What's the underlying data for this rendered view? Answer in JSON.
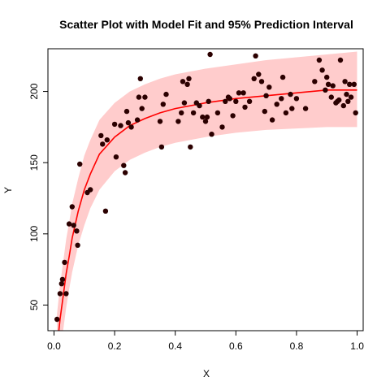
{
  "chart_data": {
    "type": "scatter",
    "title": "Scatter Plot with Model Fit and 95% Prediction Interval",
    "xlabel": "X",
    "ylabel": "Y",
    "xlim": [
      -0.02,
      1.02
    ],
    "ylim": [
      32,
      230
    ],
    "x_ticks": [
      0.0,
      0.2,
      0.4,
      0.6,
      0.8,
      1.0
    ],
    "x_tick_labels": [
      "0.0",
      "0.2",
      "0.4",
      "0.6",
      "0.8",
      "1.0"
    ],
    "y_ticks": [
      50,
      100,
      150,
      200
    ],
    "y_tick_labels": [
      "50",
      "100",
      "150",
      "200"
    ],
    "grid": false,
    "colors": {
      "points": "#2b0000",
      "fit_line": "#ff0000",
      "band": "#ffcccc",
      "axes": "#000000"
    },
    "points": [
      [
        0.01,
        40
      ],
      [
        0.02,
        58
      ],
      [
        0.025,
        65
      ],
      [
        0.028,
        68
      ],
      [
        0.035,
        80
      ],
      [
        0.04,
        58
      ],
      [
        0.05,
        107
      ],
      [
        0.06,
        119
      ],
      [
        0.065,
        106
      ],
      [
        0.075,
        102
      ],
      [
        0.078,
        92
      ],
      [
        0.085,
        149
      ],
      [
        0.11,
        129
      ],
      [
        0.12,
        131
      ],
      [
        0.155,
        169
      ],
      [
        0.16,
        163
      ],
      [
        0.17,
        116
      ],
      [
        0.175,
        166
      ],
      [
        0.2,
        177
      ],
      [
        0.205,
        154
      ],
      [
        0.22,
        176
      ],
      [
        0.23,
        148
      ],
      [
        0.235,
        143
      ],
      [
        0.24,
        186
      ],
      [
        0.245,
        178
      ],
      [
        0.255,
        175
      ],
      [
        0.275,
        180
      ],
      [
        0.28,
        196
      ],
      [
        0.285,
        209
      ],
      [
        0.29,
        188
      ],
      [
        0.3,
        196
      ],
      [
        0.35,
        179
      ],
      [
        0.355,
        161
      ],
      [
        0.36,
        191
      ],
      [
        0.37,
        198
      ],
      [
        0.41,
        179
      ],
      [
        0.42,
        185
      ],
      [
        0.425,
        207
      ],
      [
        0.43,
        192
      ],
      [
        0.44,
        205
      ],
      [
        0.445,
        209
      ],
      [
        0.45,
        161
      ],
      [
        0.46,
        185
      ],
      [
        0.47,
        192
      ],
      [
        0.48,
        190
      ],
      [
        0.49,
        182
      ],
      [
        0.5,
        179
      ],
      [
        0.505,
        182
      ],
      [
        0.51,
        193
      ],
      [
        0.515,
        226
      ],
      [
        0.52,
        170
      ],
      [
        0.54,
        185
      ],
      [
        0.555,
        175
      ],
      [
        0.565,
        193
      ],
      [
        0.575,
        196
      ],
      [
        0.58,
        195
      ],
      [
        0.59,
        183
      ],
      [
        0.6,
        193
      ],
      [
        0.61,
        199
      ],
      [
        0.625,
        199
      ],
      [
        0.63,
        189
      ],
      [
        0.645,
        193
      ],
      [
        0.66,
        209
      ],
      [
        0.665,
        225
      ],
      [
        0.675,
        212
      ],
      [
        0.685,
        207
      ],
      [
        0.695,
        186
      ],
      [
        0.7,
        197
      ],
      [
        0.71,
        203
      ],
      [
        0.72,
        180
      ],
      [
        0.735,
        191
      ],
      [
        0.75,
        195
      ],
      [
        0.755,
        210
      ],
      [
        0.765,
        185
      ],
      [
        0.78,
        198
      ],
      [
        0.785,
        188
      ],
      [
        0.8,
        195
      ],
      [
        0.83,
        188
      ],
      [
        0.86,
        207
      ],
      [
        0.875,
        222
      ],
      [
        0.885,
        215
      ],
      [
        0.895,
        201
      ],
      [
        0.9,
        210
      ],
      [
        0.905,
        205
      ],
      [
        0.915,
        196
      ],
      [
        0.92,
        204
      ],
      [
        0.93,
        192
      ],
      [
        0.935,
        193
      ],
      [
        0.94,
        194
      ],
      [
        0.945,
        222
      ],
      [
        0.955,
        190
      ],
      [
        0.96,
        207
      ],
      [
        0.965,
        198
      ],
      [
        0.97,
        193
      ],
      [
        0.975,
        205
      ],
      [
        0.98,
        196
      ],
      [
        0.99,
        205
      ],
      [
        0.995,
        185
      ]
    ],
    "fit": {
      "x": [
        0.01,
        0.02,
        0.03,
        0.04,
        0.05,
        0.06,
        0.08,
        0.1,
        0.12,
        0.15,
        0.2,
        0.25,
        0.3,
        0.35,
        0.4,
        0.5,
        0.6,
        0.7,
        0.8,
        0.9,
        1.0
      ],
      "y": [
        20,
        40,
        56,
        72,
        84,
        97,
        116,
        131,
        142,
        156,
        168,
        176,
        181,
        185,
        188,
        192,
        195,
        197,
        199,
        201,
        201
      ],
      "lower": [
        -4,
        16,
        32,
        48,
        61,
        73,
        92,
        106,
        118,
        131,
        144,
        152,
        157,
        161,
        164,
        168,
        171,
        173,
        174,
        175,
        175
      ],
      "upper": [
        44,
        64,
        80,
        96,
        108,
        121,
        139,
        155,
        166,
        180,
        192,
        200,
        205,
        209,
        212,
        216,
        219,
        222,
        224,
        226,
        228
      ]
    }
  }
}
